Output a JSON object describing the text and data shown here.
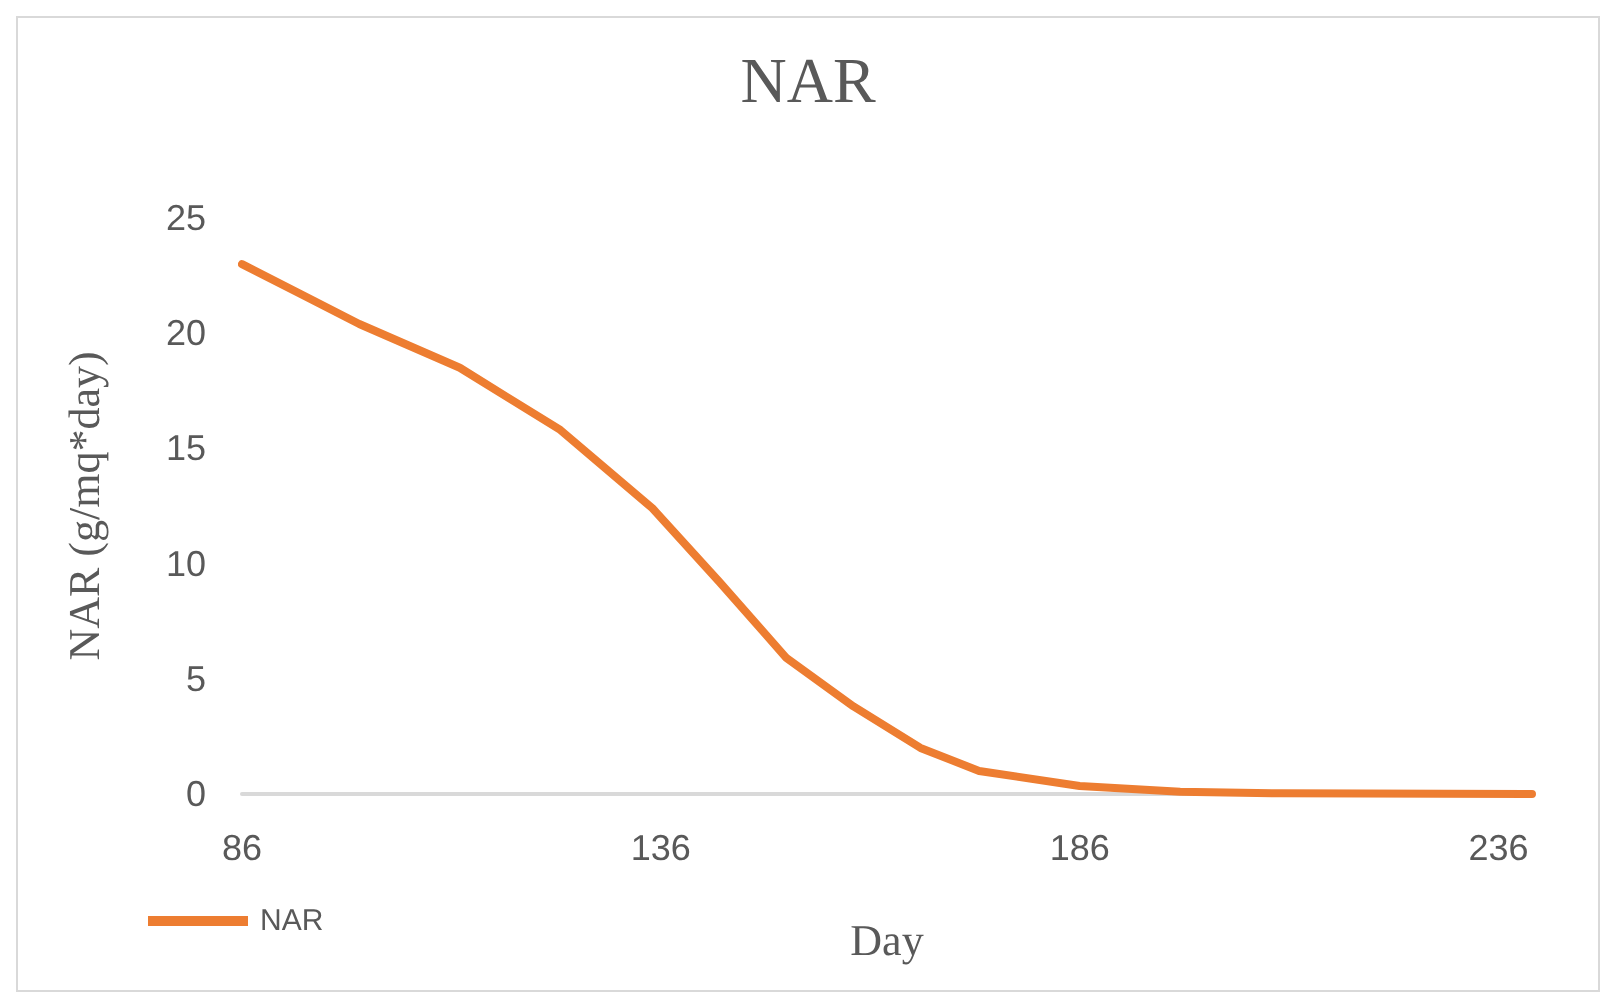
{
  "chart_data": {
    "type": "line",
    "title": "NAR",
    "xlabel": "Day",
    "ylabel": "NAR (g/mq*day)",
    "x": [
      86,
      93,
      100,
      112,
      124,
      135,
      143,
      151,
      159,
      167,
      174,
      186,
      198,
      210,
      240
    ],
    "series": [
      {
        "name": "NAR",
        "color": "#ed7d31",
        "values": [
          23,
          21.7,
          20.4,
          18.5,
          15.8,
          12.4,
          9.2,
          5.9,
          3.8,
          2.0,
          1.0,
          0.35,
          0.1,
          0.03,
          0
        ]
      }
    ],
    "xlim": [
      86,
      240
    ],
    "xticks": [
      86,
      136,
      186,
      236
    ],
    "ylim": [
      0,
      25
    ],
    "yticks": [
      0,
      5,
      10,
      15,
      20,
      25
    ],
    "grid": false,
    "legend": "bottom left",
    "marker": "none",
    "line_style": "solid"
  }
}
